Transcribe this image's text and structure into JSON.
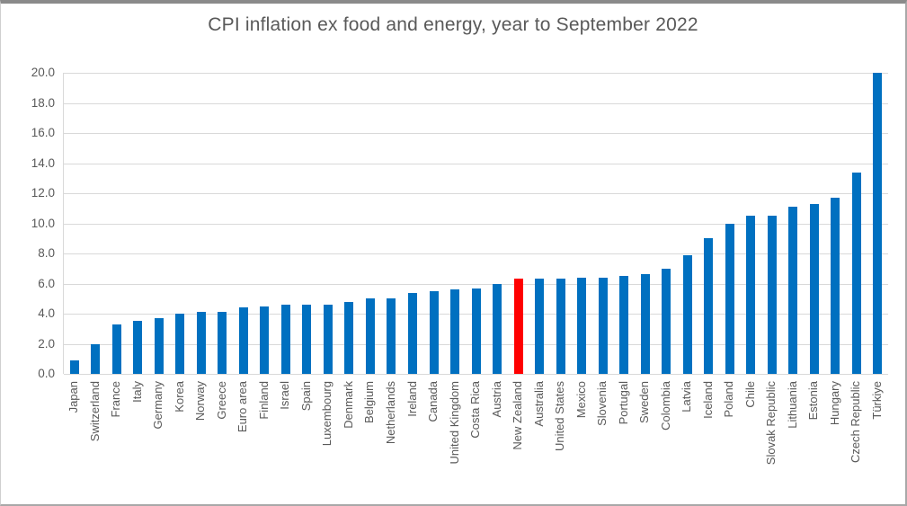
{
  "chart_data": {
    "type": "bar",
    "title": "CPI inflation ex food and energy, year to September 2022",
    "categories": [
      "Japan",
      "Switzerland",
      "France",
      "Italy",
      "Germany",
      "Korea",
      "Norway",
      "Greece",
      "Euro area",
      "Finland",
      "Israel",
      "Spain",
      "Luxembourg",
      "Denmark",
      "Belgium",
      "Netherlands",
      "Ireland",
      "Canada",
      "United Kingdom",
      "Costa Rica",
      "Austria",
      "New Zealand",
      "Australia",
      "United States",
      "Mexico",
      "Slovenia",
      "Portugal",
      "Sweden",
      "Colombia",
      "Latvia",
      "Iceland",
      "Poland",
      "Chile",
      "Slovak Republic",
      "Lithuania",
      "Estonia",
      "Hungary",
      "Czech Republic",
      "Türkiye"
    ],
    "values": [
      0.9,
      2.0,
      3.3,
      3.5,
      3.7,
      4.0,
      4.1,
      4.1,
      4.4,
      4.5,
      4.6,
      4.6,
      4.6,
      4.8,
      5.0,
      5.0,
      5.4,
      5.5,
      5.6,
      5.7,
      6.0,
      6.3,
      6.3,
      6.3,
      6.4,
      6.4,
      6.5,
      6.6,
      7.0,
      7.9,
      9.0,
      10.0,
      10.5,
      10.5,
      11.1,
      11.3,
      11.7,
      13.4,
      20.0
    ],
    "highlight_category": "New Zealand",
    "xlabel": "",
    "ylabel": "",
    "ylim": [
      0,
      20
    ],
    "ytick_step": 2,
    "ytick_labels": [
      "0.0",
      "2.0",
      "4.0",
      "6.0",
      "8.0",
      "10.0",
      "12.0",
      "14.0",
      "16.0",
      "18.0",
      "20.0"
    ],
    "grid": true,
    "legend_position": "none",
    "colors": {
      "bar": "#0070C0",
      "highlight": "#FF0000",
      "gridline": "#D9D9D9",
      "axis_text": "#595959",
      "title_text": "#595959",
      "background": "#FFFFFF"
    }
  }
}
